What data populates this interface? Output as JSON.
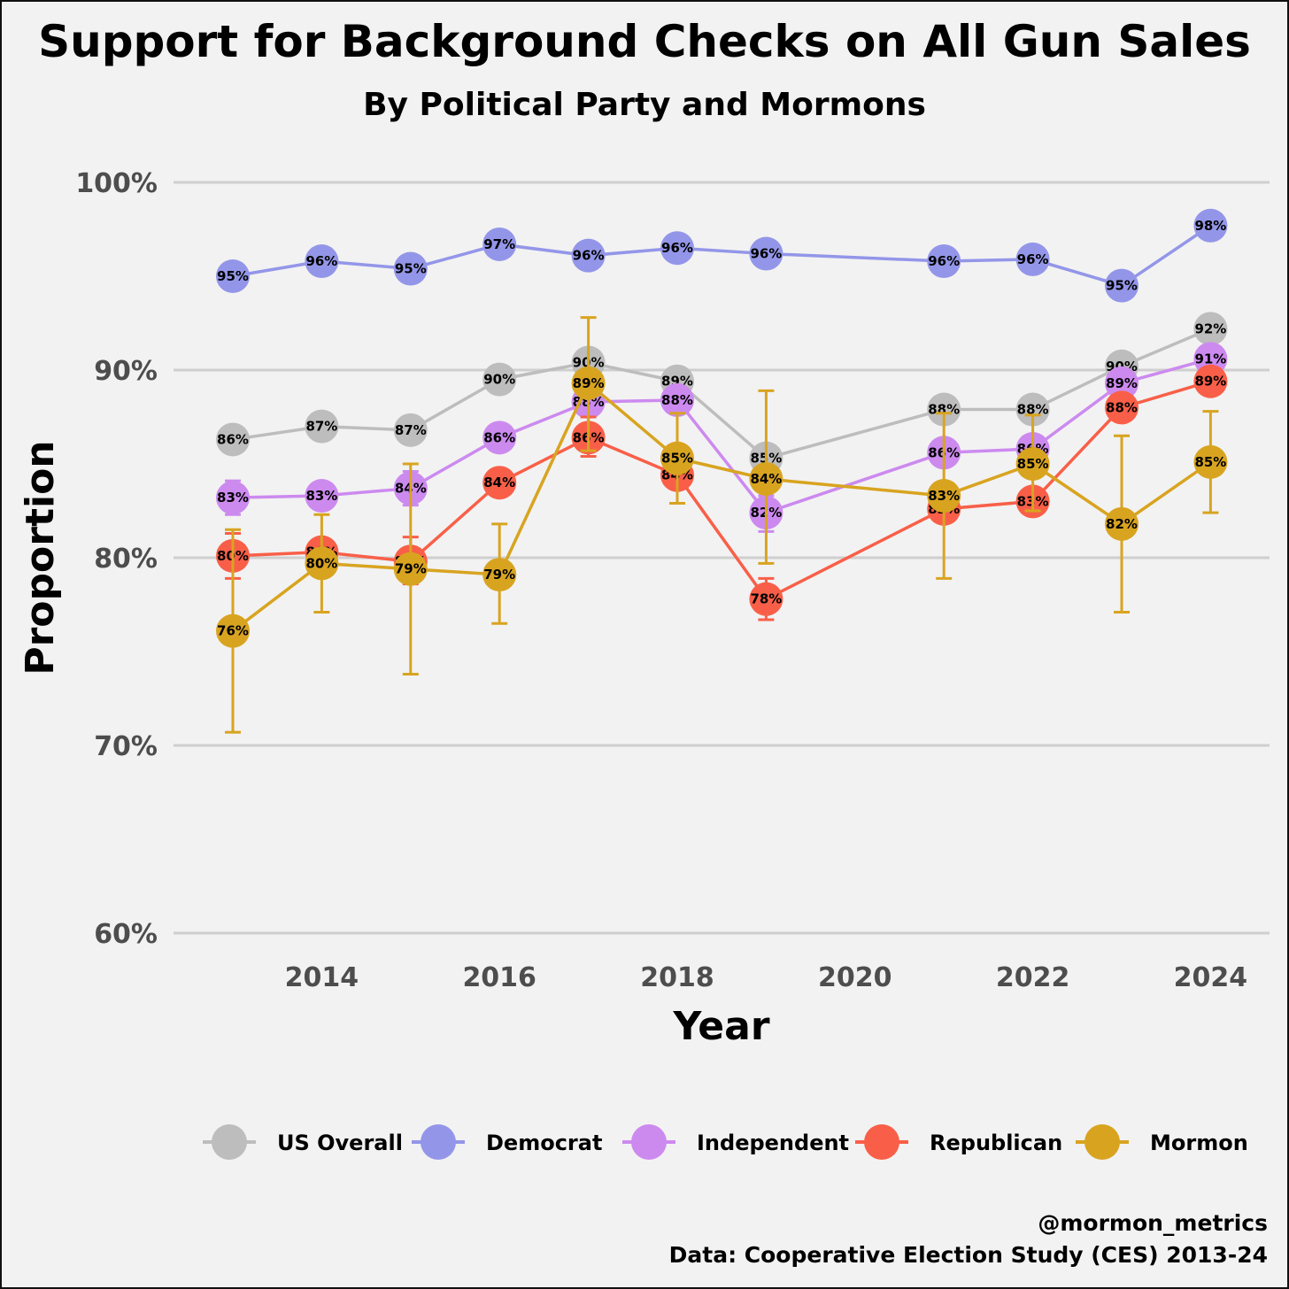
{
  "chart_data": {
    "type": "line",
    "title": "Support for Background Checks on All Gun Sales",
    "subtitle": "By Political Party and Mormons",
    "xlabel": "Year",
    "ylabel": "Proportion",
    "xlim": [
      2012.6,
      2024.7
    ],
    "ylim": [
      60,
      100
    ],
    "xticks": [
      2014,
      2016,
      2018,
      2020,
      2022,
      2024
    ],
    "yticks": [
      {
        "value": 60,
        "label": "60%"
      },
      {
        "value": 70,
        "label": "70%"
      },
      {
        "value": 80,
        "label": "80%"
      },
      {
        "value": 90,
        "label": "90%"
      },
      {
        "value": 100,
        "label": "100%"
      }
    ],
    "grid": "horizontal",
    "legend_position": "bottom",
    "series": [
      {
        "name": "US Overall",
        "color": "#bdbdbd",
        "points": [
          {
            "x": 2013,
            "y": 86.3,
            "label": "86%"
          },
          {
            "x": 2014,
            "y": 87.0,
            "label": "87%"
          },
          {
            "x": 2015,
            "y": 86.8,
            "label": "87%"
          },
          {
            "x": 2016,
            "y": 89.5,
            "label": "90%"
          },
          {
            "x": 2017,
            "y": 90.4,
            "label": "90%"
          },
          {
            "x": 2018,
            "y": 89.4,
            "label": "89%"
          },
          {
            "x": 2019,
            "y": 85.3,
            "label": "85%"
          },
          {
            "x": 2021,
            "y": 87.9,
            "label": "88%"
          },
          {
            "x": 2022,
            "y": 87.9,
            "label": "88%"
          },
          {
            "x": 2023,
            "y": 90.2,
            "label": "90%"
          },
          {
            "x": 2024,
            "y": 92.2,
            "label": "92%"
          }
        ]
      },
      {
        "name": "Democrat",
        "color": "#9396e8",
        "points": [
          {
            "x": 2013,
            "y": 95.0,
            "label": "95%"
          },
          {
            "x": 2014,
            "y": 95.8,
            "label": "96%"
          },
          {
            "x": 2015,
            "y": 95.4,
            "label": "95%"
          },
          {
            "x": 2016,
            "y": 96.7,
            "label": "97%"
          },
          {
            "x": 2017,
            "y": 96.1,
            "label": "96%"
          },
          {
            "x": 2018,
            "y": 96.5,
            "label": "96%"
          },
          {
            "x": 2019,
            "y": 96.2,
            "label": "96%"
          },
          {
            "x": 2021,
            "y": 95.8,
            "label": "96%"
          },
          {
            "x": 2022,
            "y": 95.9,
            "label": "96%"
          },
          {
            "x": 2023,
            "y": 94.5,
            "label": "95%"
          },
          {
            "x": 2024,
            "y": 97.7,
            "label": "98%"
          }
        ]
      },
      {
        "name": "Independent",
        "color": "#cc8aef",
        "points": [
          {
            "x": 2013,
            "y": 83.2,
            "label": "83%",
            "err": [
              82.3,
              84.1
            ]
          },
          {
            "x": 2014,
            "y": 83.3,
            "label": "83%"
          },
          {
            "x": 2015,
            "y": 83.7,
            "label": "84%",
            "err": [
              82.8,
              84.6
            ]
          },
          {
            "x": 2016,
            "y": 86.4,
            "label": "86%"
          },
          {
            "x": 2017,
            "y": 88.3,
            "label": "88%"
          },
          {
            "x": 2018,
            "y": 88.4,
            "label": "88%"
          },
          {
            "x": 2019,
            "y": 82.4,
            "label": "82%",
            "err": [
              81.4,
              83.3
            ]
          },
          {
            "x": 2021,
            "y": 85.6,
            "label": "86%"
          },
          {
            "x": 2022,
            "y": 85.8,
            "label": "86%"
          },
          {
            "x": 2023,
            "y": 89.3,
            "label": "89%"
          },
          {
            "x": 2024,
            "y": 90.6,
            "label": "91%"
          }
        ]
      },
      {
        "name": "Republican",
        "color": "#f95f48",
        "points": [
          {
            "x": 2013,
            "y": 80.1,
            "label": "80%",
            "err": [
              78.9,
              81.3
            ]
          },
          {
            "x": 2014,
            "y": 80.3,
            "label": "80%"
          },
          {
            "x": 2015,
            "y": 79.8,
            "label": "80%",
            "err": [
              78.6,
              81.1
            ]
          },
          {
            "x": 2016,
            "y": 84.0,
            "label": "84%"
          },
          {
            "x": 2017,
            "y": 86.4,
            "label": "86%",
            "err": [
              85.4,
              87.5
            ]
          },
          {
            "x": 2018,
            "y": 84.4,
            "label": "84%"
          },
          {
            "x": 2019,
            "y": 77.8,
            "label": "78%",
            "err": [
              76.7,
              78.9
            ]
          },
          {
            "x": 2021,
            "y": 82.6,
            "label": "83%"
          },
          {
            "x": 2022,
            "y": 83.0,
            "label": "83%"
          },
          {
            "x": 2023,
            "y": 88.0,
            "label": "88%"
          },
          {
            "x": 2024,
            "y": 89.4,
            "label": "89%"
          }
        ]
      },
      {
        "name": "Mormon",
        "color": "#d8a420",
        "points": [
          {
            "x": 2013,
            "y": 76.1,
            "label": "76%",
            "err": [
              70.7,
              81.5
            ]
          },
          {
            "x": 2014,
            "y": 79.7,
            "label": "80%",
            "err": [
              77.1,
              82.3
            ]
          },
          {
            "x": 2015,
            "y": 79.4,
            "label": "79%",
            "err": [
              73.8,
              85.0
            ]
          },
          {
            "x": 2016,
            "y": 79.1,
            "label": "79%",
            "err": [
              76.5,
              81.8
            ]
          },
          {
            "x": 2017,
            "y": 89.3,
            "label": "89%",
            "err": [
              85.7,
              92.8
            ]
          },
          {
            "x": 2018,
            "y": 85.3,
            "label": "85%",
            "err": [
              82.9,
              87.7
            ]
          },
          {
            "x": 2019,
            "y": 84.2,
            "label": "84%",
            "err": [
              79.7,
              88.9
            ]
          },
          {
            "x": 2021,
            "y": 83.3,
            "label": "83%",
            "err": [
              78.9,
              87.7
            ]
          },
          {
            "x": 2022,
            "y": 85.0,
            "label": "85%",
            "err": [
              82.5,
              87.6
            ]
          },
          {
            "x": 2023,
            "y": 81.8,
            "label": "82%",
            "err": [
              77.1,
              86.5
            ]
          },
          {
            "x": 2024,
            "y": 85.1,
            "label": "85%",
            "err": [
              82.4,
              87.8
            ]
          }
        ]
      }
    ]
  },
  "credit": {
    "handle": "@mormon_metrics",
    "source": "Data: Cooperative Election Study (CES) 2013-24"
  }
}
